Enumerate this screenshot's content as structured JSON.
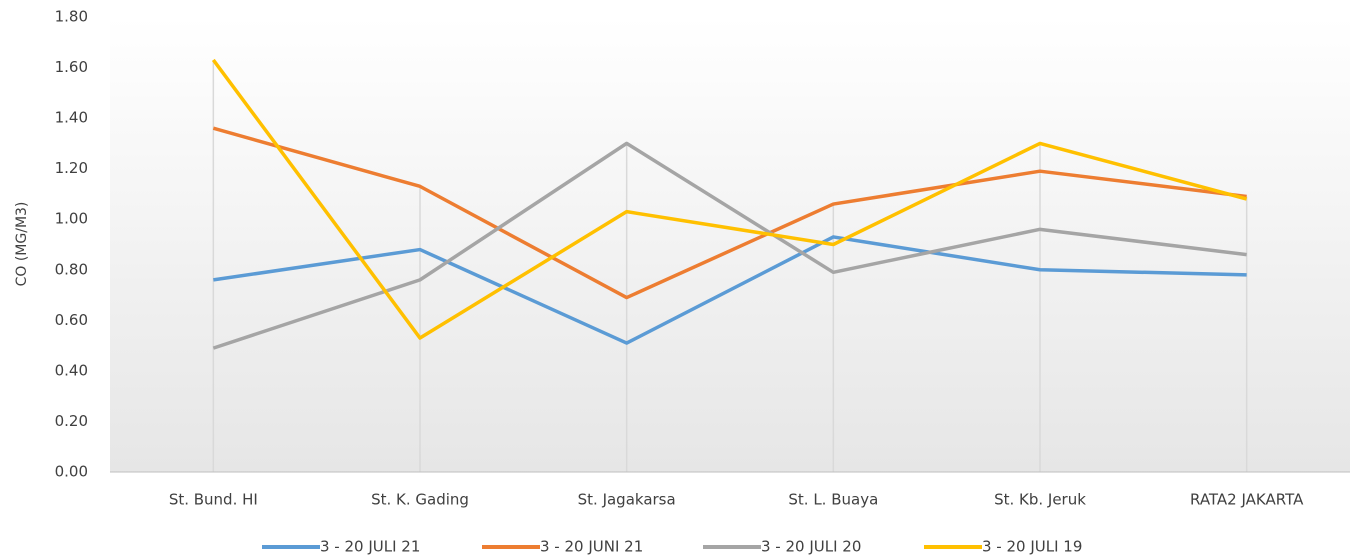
{
  "chart_data": {
    "type": "line",
    "y_label": "CO (MG/M3)",
    "categories": [
      "St. Bund. HI",
      "St. K. Gading",
      "St. Jagakarsa",
      "St. L. Buaya",
      "St. Kb. Jeruk",
      "RATA2 JAKARTA"
    ],
    "series": [
      {
        "name": "3 - 20 JULI 21",
        "color": "#5b9bd5",
        "values": [
          0.76,
          0.88,
          0.51,
          0.93,
          0.8,
          0.78
        ]
      },
      {
        "name": "3 - 20 JUNI 21",
        "color": "#ed7d31",
        "values": [
          1.36,
          1.13,
          0.69,
          1.06,
          1.19,
          1.09
        ]
      },
      {
        "name": "3 - 20 JULI 20",
        "color": "#a5a5a5",
        "values": [
          0.49,
          0.76,
          1.3,
          0.79,
          0.96,
          0.86
        ]
      },
      {
        "name": "3 - 20 JULI 19",
        "color": "#ffc000",
        "values": [
          1.63,
          0.53,
          1.03,
          0.9,
          1.3,
          1.08
        ]
      }
    ],
    "ylim": [
      0,
      1.8
    ],
    "yticks": [
      {
        "value": 0,
        "label": "0.00"
      },
      {
        "value": 0.2,
        "label": "0.20"
      },
      {
        "value": 0.4,
        "label": "0.40"
      },
      {
        "value": 0.6,
        "label": "0.60"
      },
      {
        "value": 0.8,
        "label": "0.80"
      },
      {
        "value": 1.0,
        "label": "1.00"
      },
      {
        "value": 1.2,
        "label": "1.20"
      },
      {
        "value": 1.4,
        "label": "1.40"
      },
      {
        "value": 1.6,
        "label": "1.60"
      },
      {
        "value": 1.8,
        "label": "1.80"
      }
    ],
    "legend": "bottom"
  }
}
